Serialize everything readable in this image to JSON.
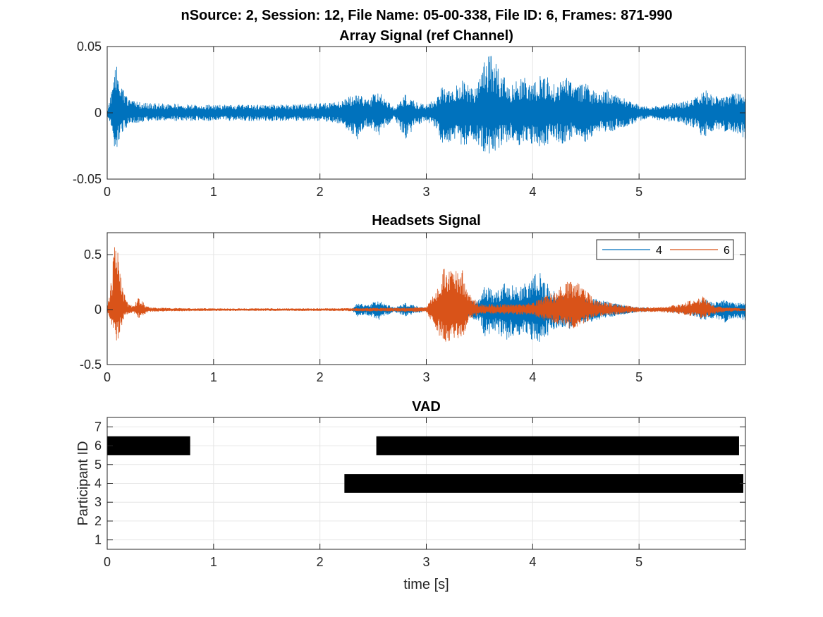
{
  "figure": {
    "suptitle": "nSource: 2, Session: 12, File Name: 05-00-338, File ID: 6, Frames: 871-990"
  },
  "colors": {
    "blue": "#0072BD",
    "orange": "#D95319",
    "black": "#000000",
    "grid": "#e6e6e6"
  },
  "chart_data": [
    {
      "type": "line",
      "title": "Array Signal (ref Channel)",
      "xlabel": "",
      "ylabel": "",
      "xlim": [
        0,
        6
      ],
      "ylim": [
        -0.05,
        0.05
      ],
      "xticks": [
        0,
        1,
        2,
        3,
        4,
        5
      ],
      "xtick_labels": [
        "0",
        "1",
        "2",
        "3",
        "4",
        "5"
      ],
      "yticks": [
        -0.05,
        0,
        0.05
      ],
      "ytick_labels": [
        "-0.05",
        "0",
        "0.05"
      ],
      "grid": true,
      "series": [
        {
          "color": "#0072BD",
          "envelope": {
            "t": [
              0,
              0.05,
              0.08,
              0.1,
              0.15,
              0.2,
              0.3,
              0.5,
              1,
              1.5,
              2,
              2.2,
              2.35,
              2.45,
              2.55,
              2.6,
              2.7,
              2.8,
              2.9,
              3.0,
              3.1,
              3.15,
              3.25,
              3.35,
              3.45,
              3.55,
              3.62,
              3.7,
              3.8,
              3.9,
              4.0,
              4.1,
              4.2,
              4.3,
              4.4,
              4.5,
              4.6,
              4.7,
              4.8,
              4.9,
              5.0,
              5.1,
              5.2,
              5.4,
              5.55,
              5.6,
              5.7,
              5.8,
              5.9,
              6.0
            ],
            "upper": [
              0.002,
              0.02,
              0.035,
              0.035,
              0.02,
              0.01,
              0.008,
              0.007,
              0.006,
              0.006,
              0.007,
              0.009,
              0.015,
              0.01,
              0.018,
              0.012,
              0.004,
              0.014,
              0.008,
              0.006,
              0.012,
              0.022,
              0.018,
              0.025,
              0.018,
              0.04,
              0.045,
              0.03,
              0.02,
              0.028,
              0.022,
              0.03,
              0.022,
              0.028,
              0.02,
              0.024,
              0.015,
              0.018,
              0.012,
              0.01,
              0.006,
              0.004,
              0.006,
              0.008,
              0.012,
              0.018,
              0.014,
              0.012,
              0.016,
              0.014
            ],
            "lower": [
              -0.002,
              -0.018,
              -0.03,
              -0.025,
              -0.015,
              -0.009,
              -0.007,
              -0.006,
              -0.006,
              -0.006,
              -0.006,
              -0.008,
              -0.02,
              -0.01,
              -0.018,
              -0.012,
              -0.004,
              -0.02,
              -0.01,
              -0.006,
              -0.012,
              -0.025,
              -0.02,
              -0.025,
              -0.02,
              -0.03,
              -0.033,
              -0.025,
              -0.02,
              -0.026,
              -0.024,
              -0.028,
              -0.02,
              -0.024,
              -0.018,
              -0.022,
              -0.014,
              -0.016,
              -0.012,
              -0.01,
              -0.006,
              -0.004,
              -0.006,
              -0.008,
              -0.012,
              -0.02,
              -0.014,
              -0.014,
              -0.016,
              -0.02
            ]
          }
        }
      ]
    },
    {
      "type": "line",
      "title": "Headsets Signal",
      "xlabel": "",
      "ylabel": "",
      "xlim": [
        0,
        6
      ],
      "ylim": [
        -0.5,
        0.7
      ],
      "xticks": [
        0,
        1,
        2,
        3,
        4,
        5
      ],
      "xtick_labels": [
        "0",
        "1",
        "2",
        "3",
        "4",
        "5"
      ],
      "yticks": [
        -0.5,
        0,
        0.5
      ],
      "ytick_labels": [
        "-0.5",
        "0",
        "0.5"
      ],
      "grid": true,
      "legend": {
        "placement": "top-right",
        "orientation": "horizontal"
      },
      "series": [
        {
          "name": "4",
          "color": "#0072BD",
          "envelope": {
            "t": [
              0,
              2.3,
              2.35,
              2.45,
              2.55,
              2.6,
              2.7,
              2.8,
              3.0,
              3.1,
              3.5,
              3.55,
              3.65,
              3.75,
              3.85,
              3.95,
              4.05,
              4.15,
              4.25,
              4.35,
              4.45,
              4.6,
              4.8,
              5.0,
              5.2,
              5.5,
              5.6,
              5.7,
              5.8,
              5.9,
              6.0
            ],
            "upper": [
              0.005,
              0.005,
              0.06,
              0.04,
              0.09,
              0.06,
              0.02,
              0.06,
              0.01,
              0.01,
              0.1,
              0.22,
              0.16,
              0.25,
              0.2,
              0.25,
              0.36,
              0.22,
              0.12,
              0.15,
              0.1,
              0.1,
              0.05,
              0.02,
              0.01,
              0.04,
              0.1,
              0.07,
              0.09,
              0.06,
              0.07
            ],
            "lower": [
              -0.005,
              -0.005,
              -0.06,
              -0.05,
              -0.1,
              -0.06,
              -0.02,
              -0.06,
              -0.01,
              -0.01,
              -0.1,
              -0.25,
              -0.2,
              -0.28,
              -0.22,
              -0.26,
              -0.32,
              -0.24,
              -0.15,
              -0.18,
              -0.12,
              -0.1,
              -0.05,
              -0.02,
              -0.01,
              -0.05,
              -0.1,
              -0.08,
              -0.12,
              -0.08,
              -0.1
            ]
          }
        },
        {
          "name": "6",
          "color": "#D95319",
          "envelope": {
            "t": [
              0,
              0.04,
              0.08,
              0.1,
              0.12,
              0.16,
              0.2,
              0.25,
              0.3,
              0.35,
              0.4,
              0.5,
              1,
              2,
              2.5,
              3.0,
              3.1,
              3.15,
              3.25,
              3.35,
              3.4,
              3.5,
              3.8,
              4.0,
              4.1,
              4.2,
              4.3,
              4.4,
              4.5,
              4.6,
              5.0,
              5.2,
              5.4,
              5.5,
              5.6,
              5.7,
              5.8,
              6.0
            ],
            "upper": [
              0.02,
              0.3,
              0.7,
              0.6,
              0.45,
              0.15,
              0.05,
              0.04,
              0.12,
              0.05,
              0.02,
              0.015,
              0.01,
              0.01,
              0.015,
              0.02,
              0.2,
              0.4,
              0.35,
              0.38,
              0.15,
              0.05,
              0.05,
              0.06,
              0.12,
              0.16,
              0.24,
              0.28,
              0.18,
              0.08,
              0.02,
              0.02,
              0.05,
              0.1,
              0.12,
              0.04,
              0.02,
              0.01
            ],
            "lower": [
              -0.02,
              -0.15,
              -0.3,
              -0.3,
              -0.2,
              -0.08,
              -0.04,
              -0.03,
              -0.08,
              -0.04,
              -0.02,
              -0.015,
              -0.01,
              -0.01,
              -0.015,
              -0.02,
              -0.2,
              -0.3,
              -0.28,
              -0.25,
              -0.1,
              -0.04,
              -0.04,
              -0.05,
              -0.1,
              -0.12,
              -0.16,
              -0.18,
              -0.12,
              -0.06,
              -0.02,
              -0.02,
              -0.04,
              -0.06,
              -0.08,
              -0.04,
              -0.02,
              -0.01
            ]
          }
        }
      ]
    },
    {
      "type": "bar",
      "title": "VAD",
      "xlabel": "time [s]",
      "ylabel": "Participant ID",
      "xlim": [
        0,
        6
      ],
      "ylim": [
        0.5,
        7.5
      ],
      "xticks": [
        0,
        1,
        2,
        3,
        4,
        5
      ],
      "xtick_labels": [
        "0",
        "1",
        "2",
        "3",
        "4",
        "5"
      ],
      "yticks": [
        1,
        2,
        3,
        4,
        5,
        6,
        7
      ],
      "ytick_labels": [
        "1",
        "2",
        "3",
        "4",
        "5",
        "6",
        "7"
      ],
      "grid": true,
      "segments": [
        {
          "participant": 6,
          "start": 0.0,
          "end": 0.78
        },
        {
          "participant": 6,
          "start": 2.53,
          "end": 5.94
        },
        {
          "participant": 4,
          "start": 2.23,
          "end": 5.98
        }
      ]
    }
  ]
}
